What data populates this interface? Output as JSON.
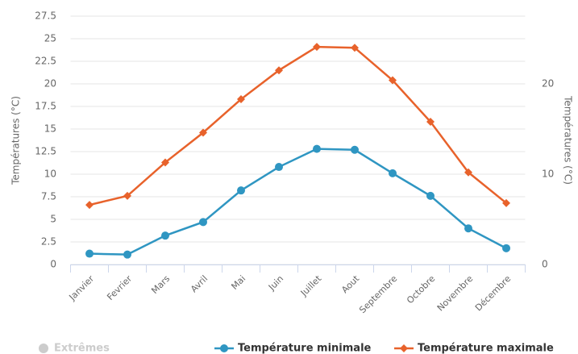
{
  "chart_data": {
    "type": "line",
    "y_label": "Températures (°C)",
    "y2_label": "Températures (°C)",
    "categories": [
      "Janvier",
      "Fevrier",
      "Mars",
      "Avril",
      "Mai",
      "Juin",
      "Juillet",
      "Aout",
      "Septembre",
      "Octobre",
      "Novembre",
      "Décembre"
    ],
    "series": [
      {
        "name": "Température minimale",
        "color": "#2f96c2",
        "marker": "circle",
        "values": [
          1.2,
          1.1,
          3.2,
          4.7,
          8.2,
          10.8,
          12.8,
          12.7,
          10.1,
          7.6,
          4.0,
          1.8
        ]
      },
      {
        "name": "Température maximale",
        "color": "#e8622b",
        "marker": "diamond",
        "values": [
          6.6,
          7.6,
          11.3,
          14.6,
          18.3,
          21.5,
          24.1,
          24.0,
          20.4,
          15.8,
          10.2,
          6.8
        ]
      }
    ],
    "hidden_series": [
      "Extrêmes"
    ],
    "ylim": [
      0,
      27.5
    ],
    "yticks": [
      0,
      2.5,
      5,
      7.5,
      10,
      12.5,
      15,
      17.5,
      20,
      22.5,
      25,
      27.5
    ],
    "y2lim": [
      0,
      27.5
    ],
    "y2ticks": [
      0,
      10,
      20
    ],
    "grid": true
  }
}
